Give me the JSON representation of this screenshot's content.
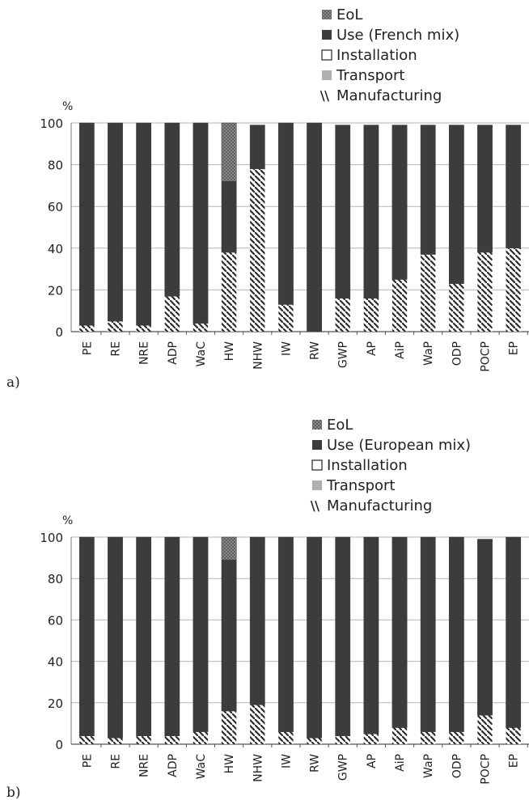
{
  "chart_data": [
    {
      "panel_label": "a)",
      "type": "bar",
      "stacked": true,
      "yunit": "%",
      "ylim": [
        0,
        100
      ],
      "yticks": [
        0,
        20,
        40,
        60,
        80,
        100
      ],
      "grid": true,
      "legend_position": "top-right",
      "categories": [
        "PE",
        "RE",
        "NRE",
        "ADP",
        "WaC",
        "HW",
        "NHW",
        "IW",
        "RW",
        "GWP",
        "AP",
        "AiP",
        "WaP",
        "ODP",
        "POCP",
        "EP"
      ],
      "legend": [
        "EoL",
        "Use (French mix)",
        "Installation",
        "Transport",
        "Manufacturing"
      ],
      "series": [
        {
          "name": "Manufacturing",
          "color": "#3a3a3a",
          "pattern": "hatch",
          "values": [
            3,
            5,
            3,
            17,
            4,
            38,
            78,
            13,
            0,
            16,
            16,
            25,
            37,
            23,
            38,
            40
          ]
        },
        {
          "name": "Transport",
          "color": "#b0b0b0",
          "pattern": "solid",
          "values": [
            0,
            0,
            0,
            0,
            0,
            0,
            0,
            0,
            0,
            0,
            0,
            0,
            0,
            0,
            0,
            0
          ]
        },
        {
          "name": "Installation",
          "color": "#ffffff",
          "pattern": "outline",
          "values": [
            0,
            0,
            0,
            0,
            0,
            0,
            0,
            0,
            0,
            0,
            0,
            0,
            0,
            0,
            0,
            0
          ]
        },
        {
          "name": "Use (French mix)",
          "color": "#3c3c3c",
          "pattern": "solid",
          "values": [
            97,
            95,
            97,
            83,
            96,
            34,
            21,
            87,
            100,
            83,
            83,
            74,
            62,
            76,
            61,
            59
          ]
        },
        {
          "name": "EoL",
          "color": "#8a8a8a",
          "pattern": "crosshatch",
          "values": [
            0,
            0,
            0,
            0,
            0,
            28,
            0,
            0,
            0,
            0,
            0,
            0,
            0,
            0,
            0,
            0
          ]
        }
      ]
    },
    {
      "panel_label": "b)",
      "type": "bar",
      "stacked": true,
      "yunit": "%",
      "ylim": [
        0,
        100
      ],
      "yticks": [
        0,
        20,
        40,
        60,
        80,
        100
      ],
      "grid": true,
      "legend_position": "top-right",
      "categories": [
        "PE",
        "RE",
        "NRE",
        "ADP",
        "WaC",
        "HW",
        "NHW",
        "IW",
        "RW",
        "GWP",
        "AP",
        "AiP",
        "WaP",
        "ODP",
        "POCP",
        "EP"
      ],
      "legend": [
        "EoL",
        "Use (European mix)",
        "Installation",
        "Transport",
        "Manufacturing"
      ],
      "series": [
        {
          "name": "Manufacturing",
          "color": "#3a3a3a",
          "pattern": "hatch",
          "values": [
            4,
            3,
            4,
            4,
            6,
            16,
            19,
            6,
            3,
            4,
            5,
            8,
            6,
            6,
            14,
            8
          ]
        },
        {
          "name": "Transport",
          "color": "#b0b0b0",
          "pattern": "solid",
          "values": [
            0,
            0,
            0,
            0,
            0,
            0,
            0,
            0,
            0,
            0,
            0,
            0,
            0,
            0,
            0,
            0
          ]
        },
        {
          "name": "Installation",
          "color": "#ffffff",
          "pattern": "outline",
          "values": [
            0,
            0,
            0,
            0,
            0,
            0,
            0,
            0,
            0,
            0,
            0,
            0,
            0,
            0,
            0,
            0
          ]
        },
        {
          "name": "Use (European mix)",
          "color": "#3c3c3c",
          "pattern": "solid",
          "values": [
            96,
            97,
            96,
            96,
            94,
            73,
            81,
            94,
            97,
            96,
            95,
            92,
            94,
            94,
            85,
            92
          ]
        },
        {
          "name": "EoL",
          "color": "#8a8a8a",
          "pattern": "crosshatch",
          "values": [
            0,
            0,
            0,
            0,
            0,
            11,
            0,
            0,
            0,
            0,
            0,
            0,
            0,
            0,
            0,
            0
          ]
        }
      ]
    }
  ]
}
